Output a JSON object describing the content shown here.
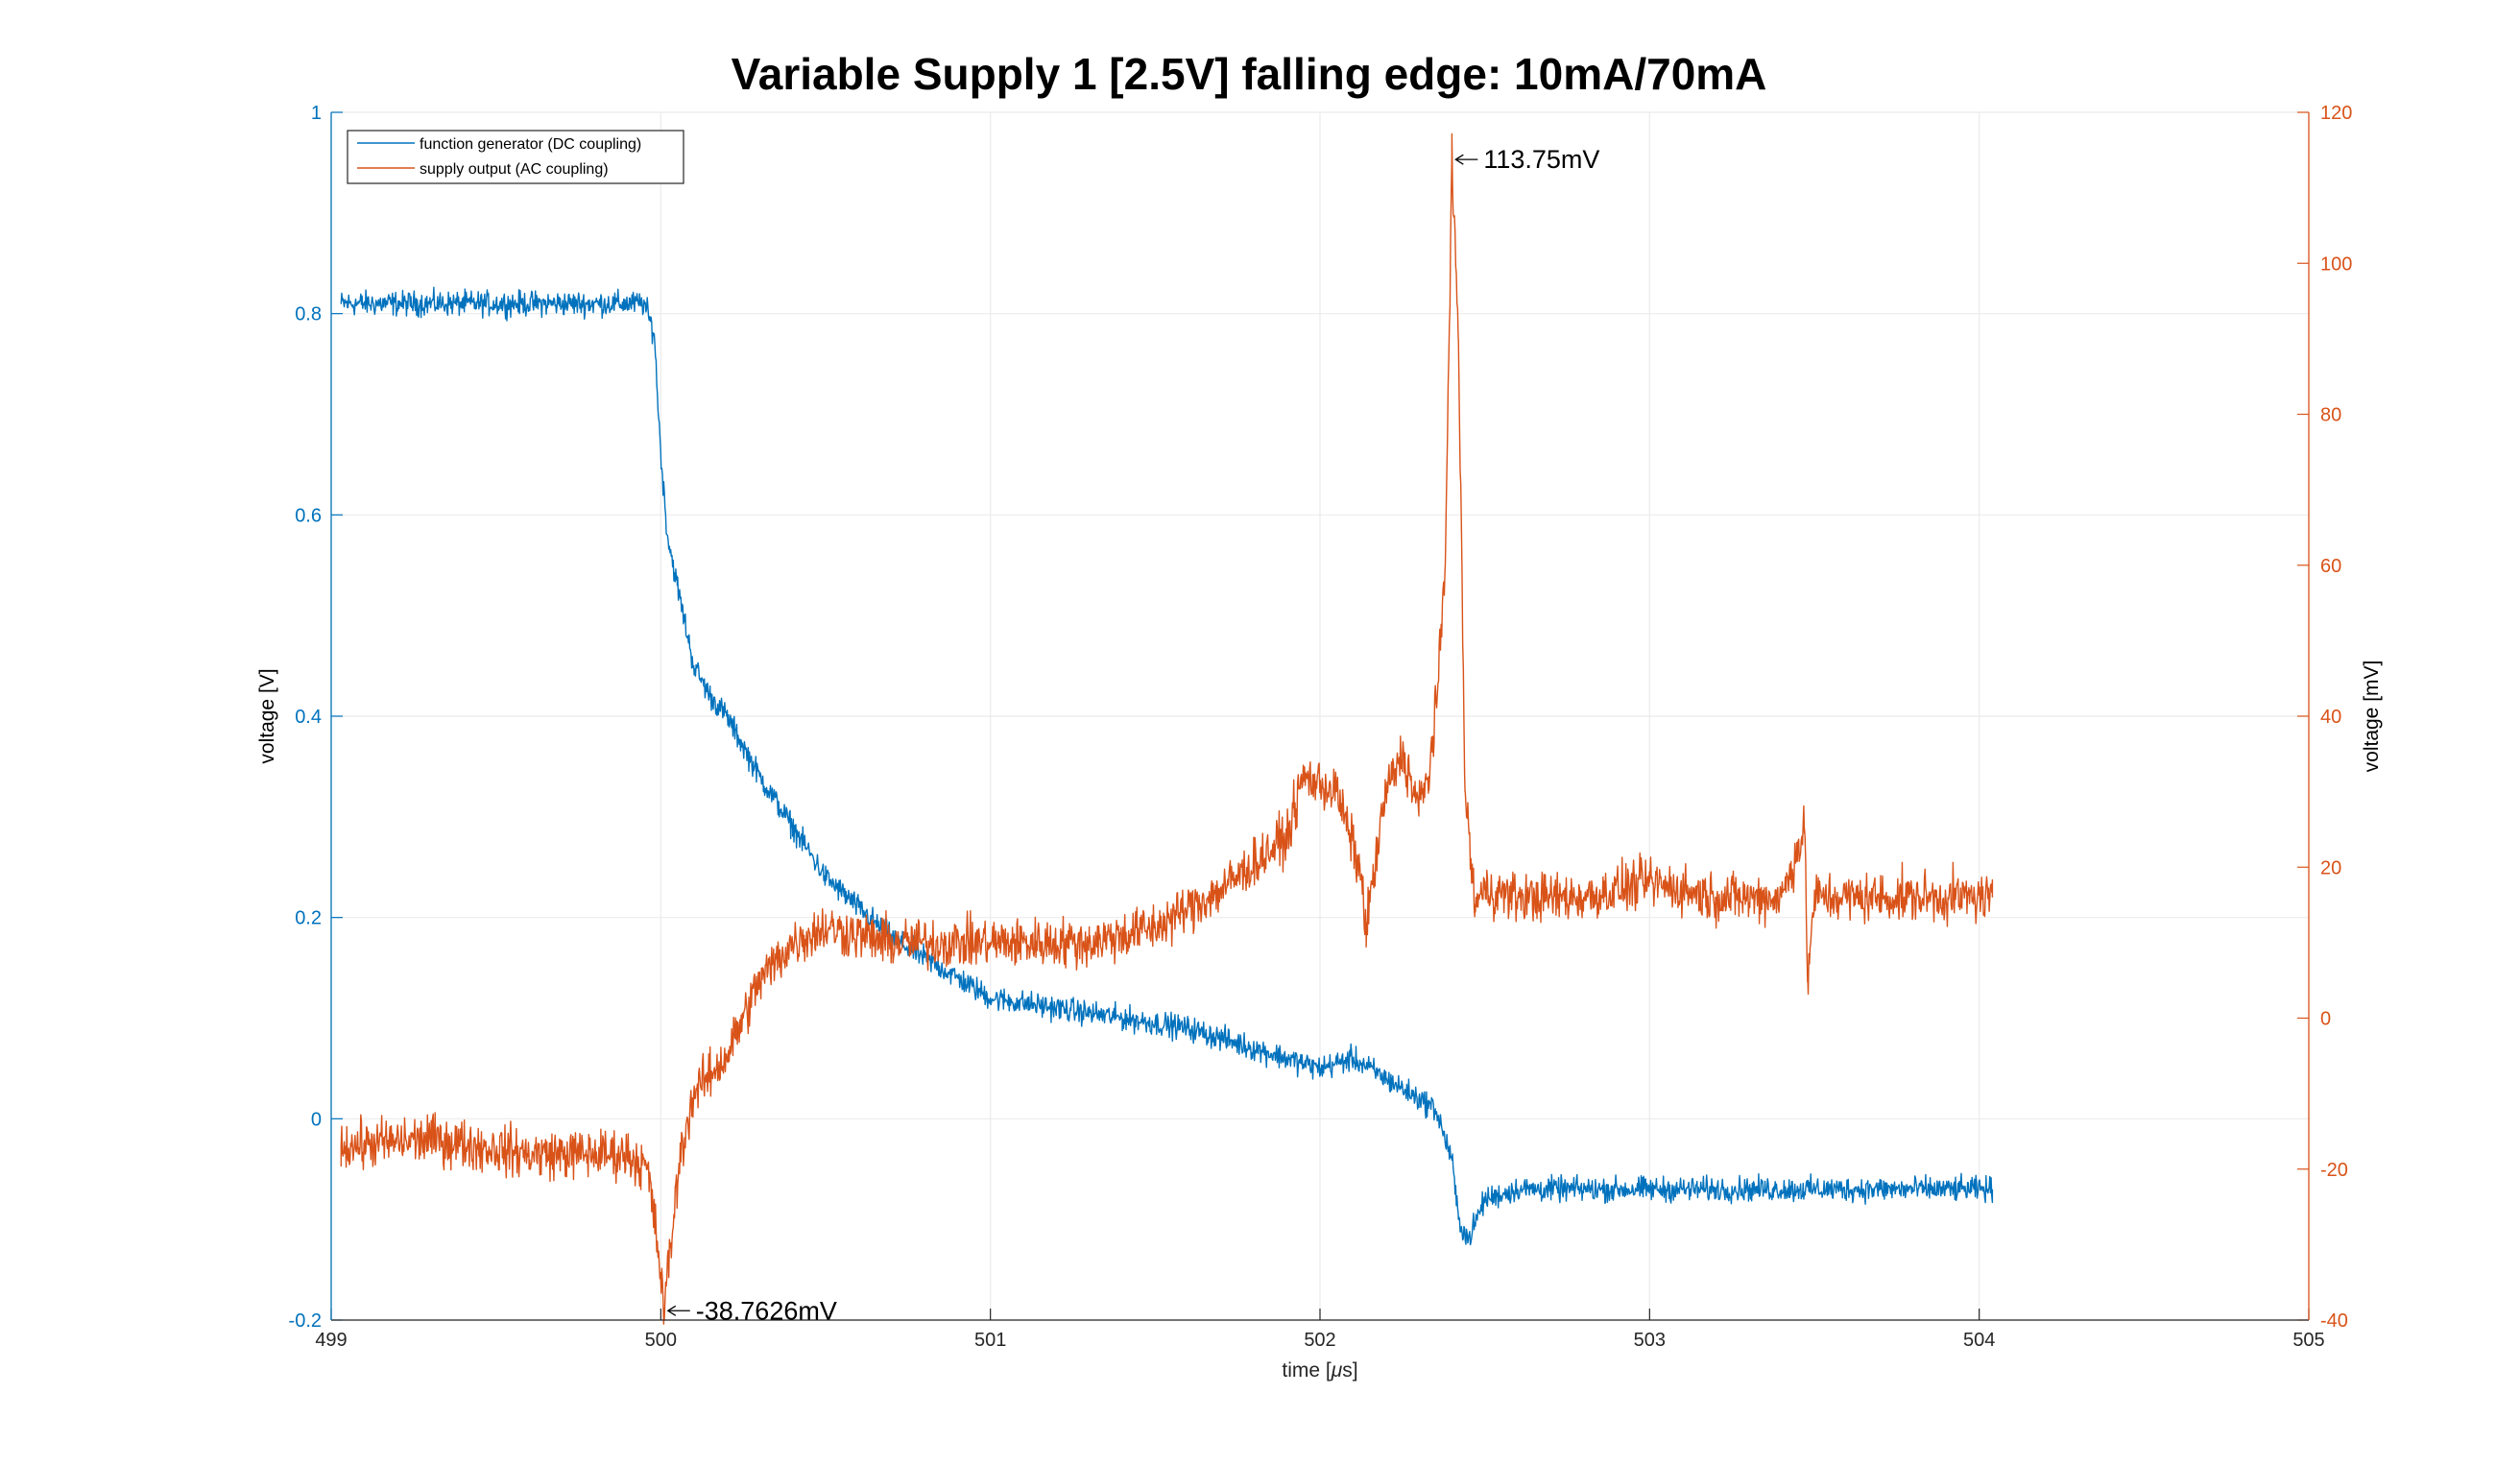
{
  "colors": {
    "series1": "#0072bd",
    "series2": "#d95319",
    "grid": "#ebebeb",
    "axis": "#262626"
  },
  "chart_data": {
    "type": "line",
    "title": "Variable Supply 1 [2.5V] falling edge: 10mA/70mA",
    "xlabel": "time [μs]",
    "xlabel_prefix": "time [",
    "xlabel_mu": "μ",
    "xlabel_suffix": "s]",
    "ylabel_left": "voltage [V]",
    "ylabel_right": "voltage [mV]",
    "xlim": [
      499,
      505
    ],
    "ylim_left": [
      -0.2,
      1
    ],
    "ylim_right": [
      -40,
      120
    ],
    "x_ticks": [
      "499",
      "500",
      "501",
      "502",
      "503",
      "504",
      "505"
    ],
    "y_ticks_left": [
      "-0.2",
      "0",
      "0.2",
      "0.4",
      "0.6",
      "0.8",
      "1"
    ],
    "y_ticks_right": [
      "-40",
      "-20",
      "0",
      "20",
      "40",
      "60",
      "80",
      "100",
      "120"
    ],
    "grid": true,
    "legend_position": "top-left",
    "series": [
      {
        "name": "function generator (DC coupling)",
        "axis": "left",
        "x": [
          499.03,
          499.5,
          499.95,
          499.98,
          500.0,
          500.02,
          500.05,
          500.1,
          500.15,
          500.2,
          500.3,
          500.4,
          500.5,
          500.6,
          500.7,
          500.8,
          500.9,
          501.0,
          501.2,
          501.4,
          501.6,
          501.8,
          502.0,
          502.1,
          502.2,
          502.3,
          502.35,
          502.4,
          502.42,
          502.45,
          502.5,
          502.6,
          502.8,
          503.0,
          503.3,
          503.6,
          503.9,
          504.04
        ],
        "y": [
          0.81,
          0.81,
          0.81,
          0.78,
          0.66,
          0.58,
          0.53,
          0.45,
          0.42,
          0.4,
          0.34,
          0.29,
          0.24,
          0.21,
          0.18,
          0.16,
          0.14,
          0.12,
          0.11,
          0.1,
          0.09,
          0.07,
          0.05,
          0.06,
          0.04,
          0.02,
          0.01,
          -0.04,
          -0.1,
          -0.12,
          -0.08,
          -0.07,
          -0.07,
          -0.07,
          -0.07,
          -0.07,
          -0.07,
          -0.07
        ]
      },
      {
        "name": "supply output (AC coupling)",
        "axis": "right",
        "x": [
          499.03,
          499.3,
          499.6,
          499.9,
          499.96,
          499.99,
          500.01,
          500.03,
          500.06,
          500.1,
          500.2,
          500.3,
          500.4,
          500.5,
          500.7,
          501.0,
          501.3,
          501.5,
          501.7,
          501.9,
          501.95,
          502.05,
          502.12,
          502.14,
          502.2,
          502.25,
          502.3,
          502.33,
          502.36,
          502.38,
          502.4,
          502.42,
          502.44,
          502.47,
          502.5,
          502.6,
          502.8,
          503.0,
          503.2,
          503.4,
          503.47,
          503.48,
          503.5,
          503.6,
          503.8,
          504.04
        ],
        "y": [
          -17,
          -16,
          -18,
          -18,
          -20,
          -30,
          -38.7626,
          -30,
          -18,
          -10,
          -5,
          5,
          10,
          12,
          10,
          10,
          10,
          12,
          17,
          24,
          32,
          30,
          20,
          12,
          30,
          35,
          28,
          32,
          45,
          60,
          113.75,
          90,
          30,
          15,
          17,
          16,
          16,
          18,
          16,
          16,
          25,
          5,
          16,
          16,
          16,
          16
        ]
      }
    ],
    "annotations": [
      {
        "text": "113.75mV",
        "x": 502.4,
        "y": 113.75,
        "axis": "right"
      },
      {
        "text": "-38.7626mV",
        "x": 500.01,
        "y": -38.7626,
        "axis": "right"
      }
    ]
  }
}
